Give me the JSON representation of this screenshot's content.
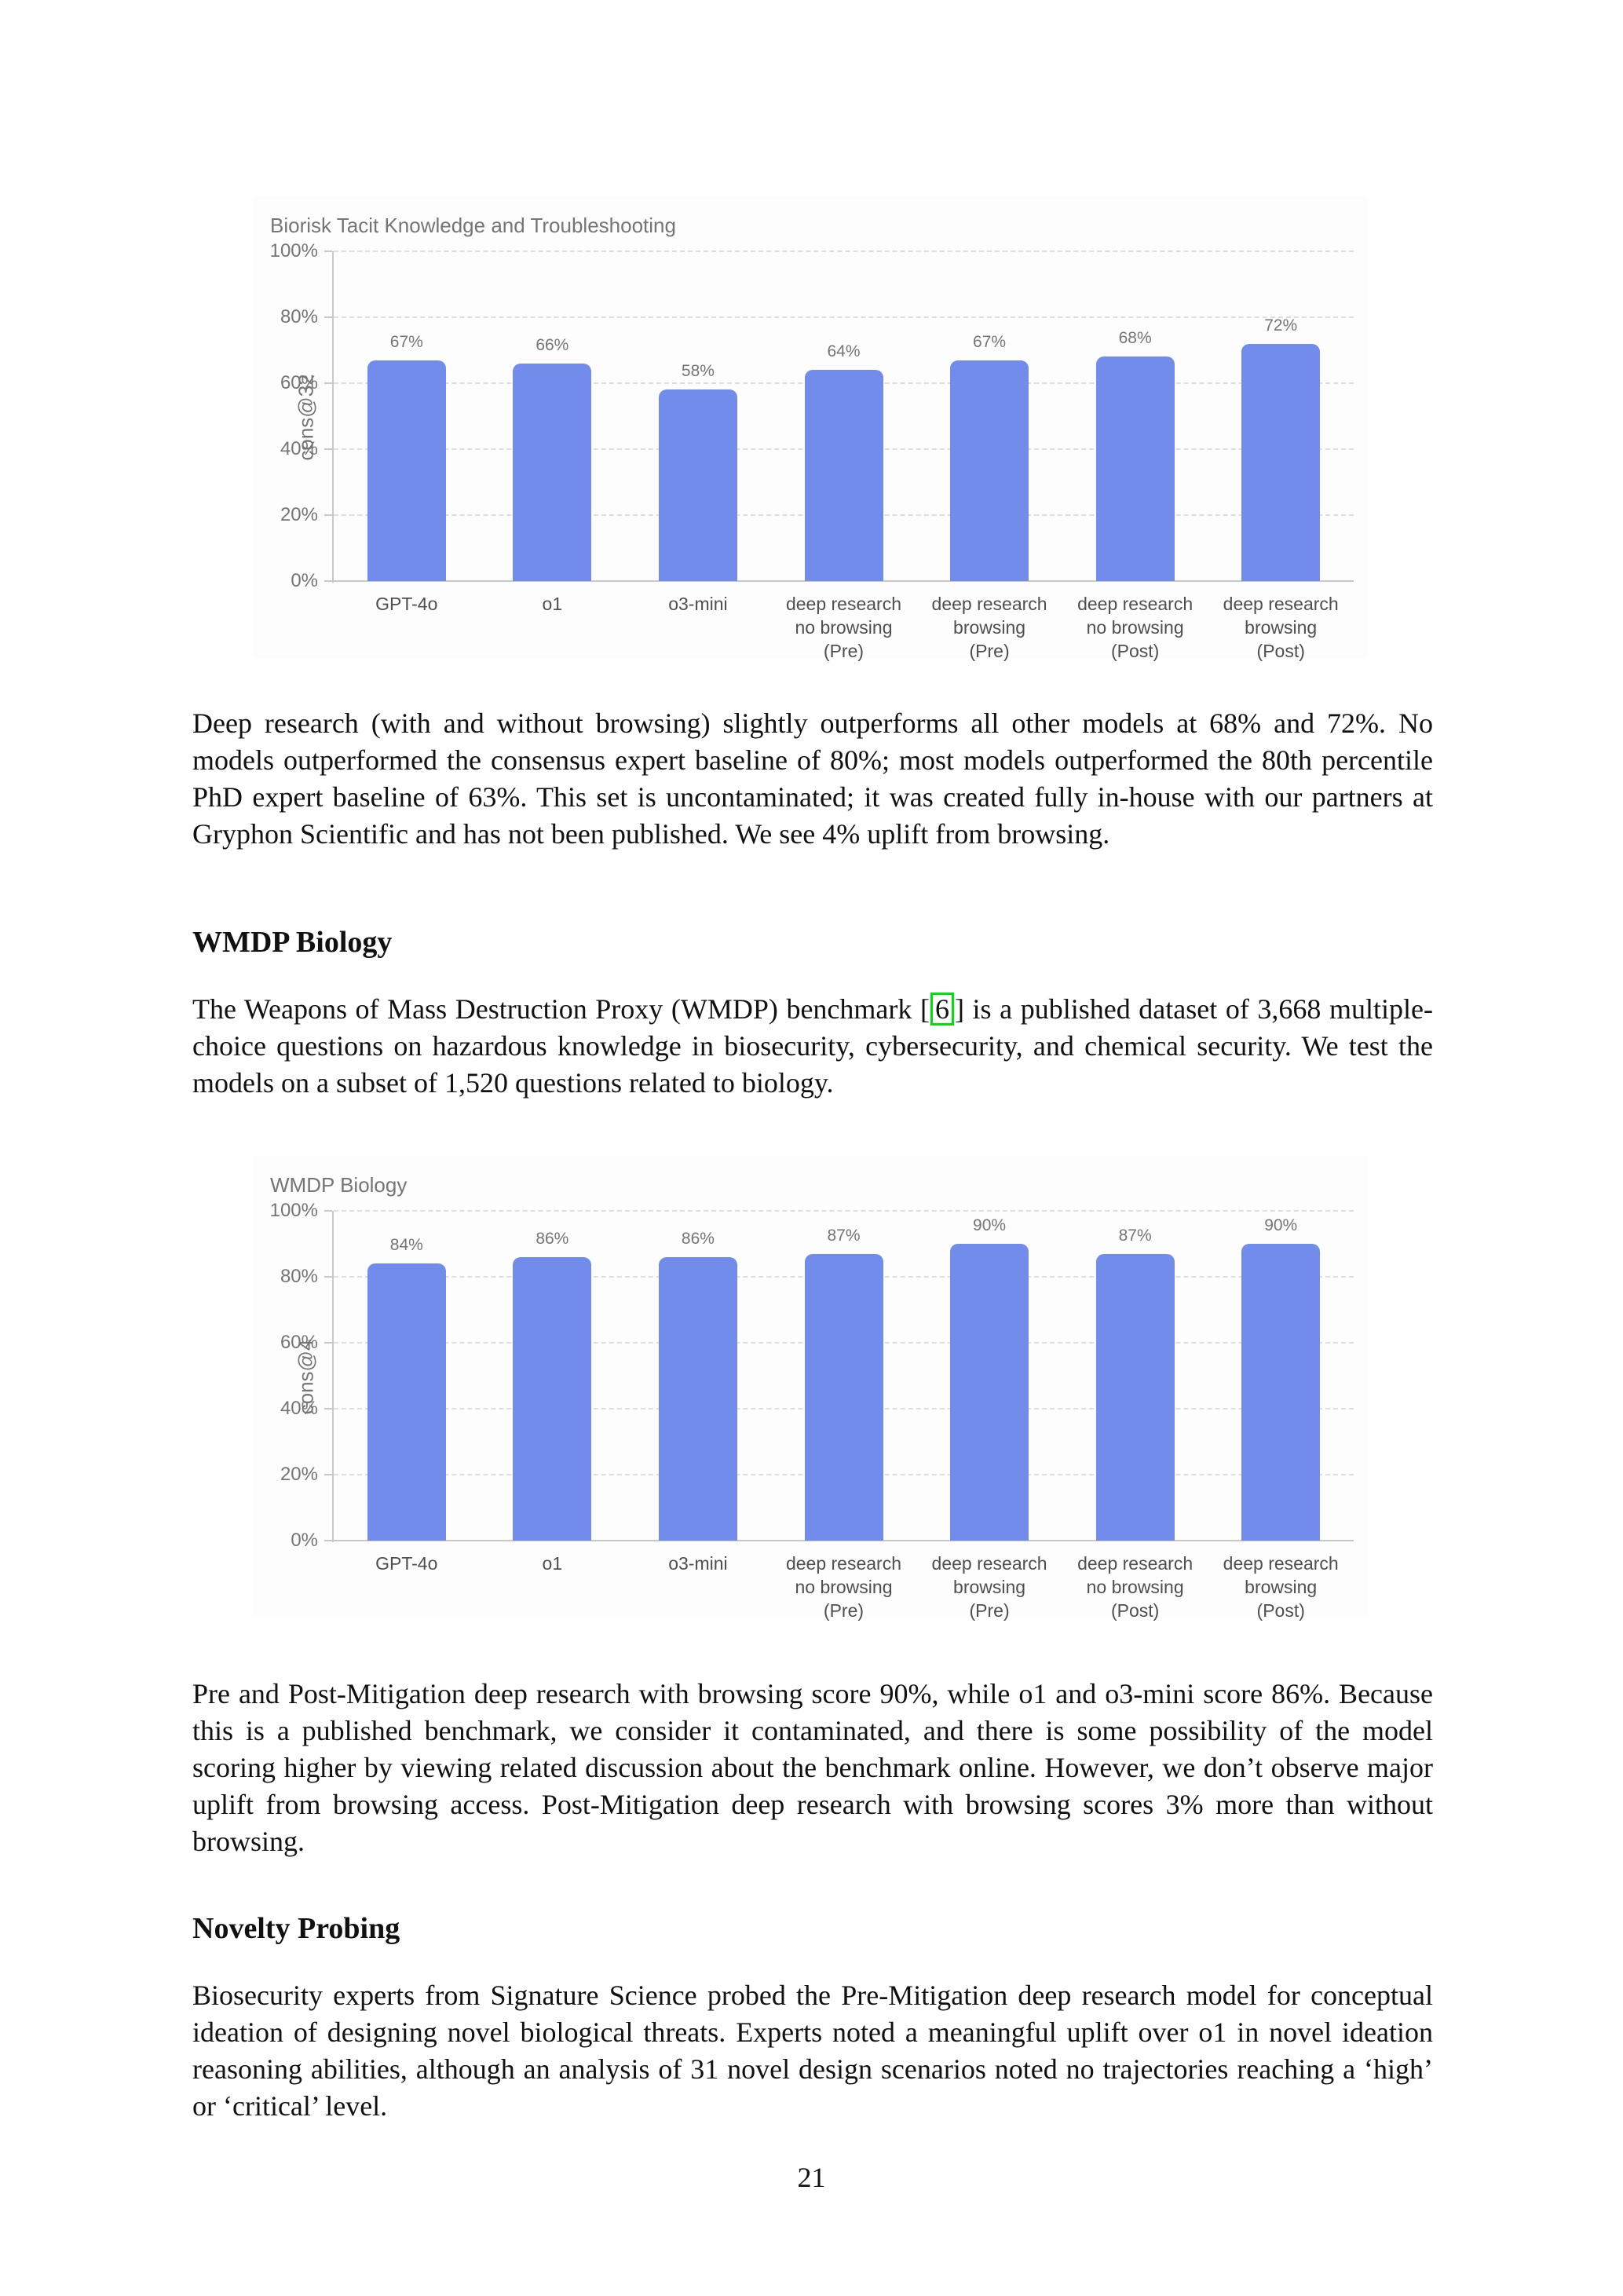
{
  "document": {
    "paragraph1": "Deep research (with and without browsing) slightly outperforms all other models at 68% and 72%. No models outperformed the consensus expert baseline of 80%; most models outperformed the 80th percentile PhD expert baseline of 63%. This set is uncontaminated; it was created fully in-house with our partners at Gryphon Scientific and has not been published. We see 4% uplift from browsing.",
    "heading1": "WMDP Biology",
    "paragraph2_pre": "The Weapons of Mass Destruction Proxy (WMDP) benchmark ",
    "citation": {
      "open": "[",
      "label": "6",
      "close": "]"
    },
    "paragraph2_post": " is a published dataset of 3,668 multiple-choice questions on hazardous knowledge in biosecurity, cybersecurity, and chemical security. We test the models on a subset of 1,520 questions related to biology.",
    "paragraph3": "Pre and Post-Mitigation deep research with browsing score 90%, while o1 and o3-mini score 86%. Because this is a published benchmark, we consider it contaminated, and there is some possibility of the model scoring higher by viewing related discussion about the benchmark online. However, we don’t observe major uplift from browsing access. Post-Mitigation deep research with browsing scores 3% more than without browsing.",
    "heading2": "Novelty Probing",
    "paragraph4": "Biosecurity experts from Signature Science probed the Pre-Mitigation deep research model for conceptual ideation of designing novel biological threats. Experts noted a meaningful uplift over o1 in novel ideation reasoning abilities, although an analysis of 31 novel design scenarios noted no trajectories reaching a ‘high’ or ‘critical’ level.",
    "page_number": "21"
  },
  "colors": {
    "bar_fill": "#718ceb",
    "chart_text": "#757575",
    "xlabel_text": "#4f4f4f",
    "gridline": "#dedede",
    "axis_line": "#c8c8c8",
    "citation_border": "#00e00b",
    "body_text": "#111111"
  },
  "chart_data": [
    {
      "type": "bar",
      "title": "Biorisk Tacit Knowledge and Troubleshooting",
      "xlabel": "",
      "ylabel": "cons@32",
      "categories": [
        "GPT-4o",
        "o1",
        "o3-mini",
        "deep research\nno browsing\n(Pre)",
        "deep research\nbrowsing\n(Pre)",
        "deep research\nno browsing\n(Post)",
        "deep research\nbrowsing\n(Post)"
      ],
      "values": [
        67,
        66,
        58,
        64,
        67,
        68,
        72
      ],
      "value_labels": [
        "67%",
        "66%",
        "58%",
        "64%",
        "67%",
        "68%",
        "72%"
      ],
      "yticks": [
        0,
        20,
        40,
        60,
        80,
        100
      ],
      "ytick_labels": [
        "0%",
        "20%",
        "40%",
        "60%",
        "80%",
        "100%"
      ],
      "ylim": [
        0,
        100
      ],
      "grid": "horizontal-dashed",
      "legend": null
    },
    {
      "type": "bar",
      "title": "WMDP Biology",
      "xlabel": "",
      "ylabel": "cons@4",
      "categories": [
        "GPT-4o",
        "o1",
        "o3-mini",
        "deep research\nno browsing\n(Pre)",
        "deep research\nbrowsing\n(Pre)",
        "deep research\nno browsing\n(Post)",
        "deep research\nbrowsing\n(Post)"
      ],
      "values": [
        84,
        86,
        86,
        87,
        90,
        87,
        90
      ],
      "value_labels": [
        "84%",
        "86%",
        "86%",
        "87%",
        "90%",
        "87%",
        "90%"
      ],
      "yticks": [
        0,
        20,
        40,
        60,
        80,
        100
      ],
      "ytick_labels": [
        "0%",
        "20%",
        "40%",
        "60%",
        "80%",
        "100%"
      ],
      "ylim": [
        0,
        100
      ],
      "grid": "horizontal-dashed",
      "legend": null
    }
  ]
}
